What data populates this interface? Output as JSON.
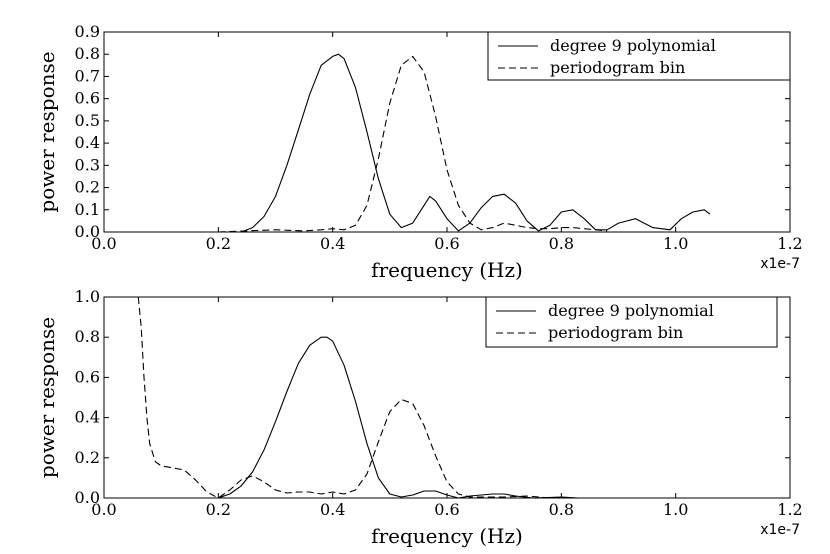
{
  "chart_data": [
    {
      "type": "line",
      "xlabel": "frequency (Hz)",
      "ylabel": "power response",
      "x_offset_text": "x1e-7",
      "xlim": [
        0.0,
        1.2
      ],
      "ylim": [
        0.0,
        0.9
      ],
      "xticks": [
        0.0,
        0.2,
        0.4,
        0.6,
        0.8,
        1.0,
        1.2
      ],
      "xtick_labels": [
        "0.0",
        "0.2",
        "0.4",
        "0.6",
        "0.8",
        "1.0",
        "1.2"
      ],
      "yticks": [
        0.0,
        0.1,
        0.2,
        0.3,
        0.4,
        0.5,
        0.6,
        0.7,
        0.8,
        0.9
      ],
      "ytick_labels": [
        "0.0",
        "0.1",
        "0.2",
        "0.3",
        "0.4",
        "0.5",
        "0.6",
        "0.7",
        "0.8",
        "0.9"
      ],
      "legend_position": "top-right",
      "series": [
        {
          "name": "degree 9 polynomial",
          "style": "solid",
          "x": [
            0.24,
            0.26,
            0.28,
            0.3,
            0.32,
            0.34,
            0.36,
            0.38,
            0.4,
            0.41,
            0.42,
            0.44,
            0.46,
            0.48,
            0.5,
            0.52,
            0.54,
            0.56,
            0.57,
            0.58,
            0.6,
            0.62,
            0.64,
            0.66,
            0.68,
            0.7,
            0.72,
            0.74,
            0.76,
            0.78,
            0.8,
            0.82,
            0.84,
            0.86,
            0.88,
            0.9,
            0.93,
            0.96,
            0.99,
            1.01,
            1.03,
            1.05,
            1.06
          ],
          "y": [
            0.0,
            0.02,
            0.07,
            0.16,
            0.3,
            0.46,
            0.62,
            0.75,
            0.79,
            0.8,
            0.78,
            0.65,
            0.45,
            0.24,
            0.08,
            0.02,
            0.04,
            0.12,
            0.16,
            0.14,
            0.06,
            0.005,
            0.04,
            0.11,
            0.16,
            0.17,
            0.13,
            0.05,
            0.005,
            0.03,
            0.09,
            0.1,
            0.06,
            0.01,
            0.01,
            0.04,
            0.06,
            0.02,
            0.01,
            0.06,
            0.09,
            0.1,
            0.08
          ]
        },
        {
          "name": "periodogram bin",
          "style": "dashed",
          "x": [
            0.2,
            0.25,
            0.3,
            0.35,
            0.38,
            0.4,
            0.42,
            0.44,
            0.46,
            0.48,
            0.5,
            0.52,
            0.54,
            0.56,
            0.58,
            0.6,
            0.62,
            0.64,
            0.66,
            0.68,
            0.7,
            0.72,
            0.74,
            0.76,
            0.78,
            0.8,
            0.82,
            0.84,
            0.86,
            0.88
          ],
          "y": [
            0.0,
            0.005,
            0.01,
            0.005,
            0.01,
            0.015,
            0.01,
            0.03,
            0.12,
            0.33,
            0.58,
            0.75,
            0.79,
            0.72,
            0.52,
            0.28,
            0.12,
            0.04,
            0.01,
            0.02,
            0.04,
            0.03,
            0.02,
            0.015,
            0.015,
            0.02,
            0.02,
            0.015,
            0.01,
            0.005
          ]
        }
      ]
    },
    {
      "type": "line",
      "xlabel": "frequency (Hz)",
      "ylabel": "power response",
      "x_offset_text": "x1e-7",
      "xlim": [
        0.0,
        1.2
      ],
      "ylim": [
        0.0,
        1.0
      ],
      "xticks": [
        0.0,
        0.2,
        0.4,
        0.6,
        0.8,
        1.0,
        1.2
      ],
      "xtick_labels": [
        "0.0",
        "0.2",
        "0.4",
        "0.6",
        "0.8",
        "1.0",
        "1.2"
      ],
      "yticks": [
        0.0,
        0.2,
        0.4,
        0.6,
        0.8,
        1.0
      ],
      "ytick_labels": [
        "0.0",
        "0.2",
        "0.4",
        "0.6",
        "0.8",
        "1.0"
      ],
      "legend_position": "top-right",
      "series": [
        {
          "name": "degree 9 polynomial",
          "style": "solid",
          "x": [
            0.2,
            0.22,
            0.24,
            0.26,
            0.28,
            0.3,
            0.32,
            0.34,
            0.36,
            0.38,
            0.39,
            0.4,
            0.42,
            0.44,
            0.46,
            0.48,
            0.5,
            0.52,
            0.54,
            0.56,
            0.58,
            0.6,
            0.62,
            0.64,
            0.66,
            0.68,
            0.7,
            0.72,
            0.75,
            0.8,
            0.83
          ],
          "y": [
            0.0,
            0.02,
            0.06,
            0.13,
            0.24,
            0.38,
            0.53,
            0.67,
            0.76,
            0.8,
            0.8,
            0.78,
            0.66,
            0.48,
            0.27,
            0.1,
            0.02,
            0.005,
            0.015,
            0.035,
            0.035,
            0.015,
            0.0,
            0.01,
            0.015,
            0.02,
            0.02,
            0.01,
            0.0,
            0.005,
            0.0
          ]
        },
        {
          "name": "periodogram bin",
          "style": "dashed",
          "x": [
            0.06,
            0.065,
            0.07,
            0.075,
            0.08,
            0.09,
            0.1,
            0.12,
            0.14,
            0.16,
            0.18,
            0.2,
            0.22,
            0.24,
            0.26,
            0.28,
            0.3,
            0.32,
            0.34,
            0.36,
            0.38,
            0.4,
            0.42,
            0.44,
            0.46,
            0.48,
            0.5,
            0.52,
            0.54,
            0.56,
            0.58,
            0.6,
            0.62,
            0.64,
            0.66,
            0.7,
            0.74,
            0.78
          ],
          "y": [
            1.0,
            0.85,
            0.6,
            0.4,
            0.27,
            0.18,
            0.16,
            0.15,
            0.14,
            0.09,
            0.03,
            0.0,
            0.04,
            0.09,
            0.11,
            0.08,
            0.04,
            0.025,
            0.03,
            0.03,
            0.02,
            0.03,
            0.02,
            0.04,
            0.12,
            0.28,
            0.43,
            0.49,
            0.47,
            0.36,
            0.21,
            0.08,
            0.02,
            0.005,
            0.005,
            0.005,
            0.01,
            0.0
          ]
        }
      ]
    }
  ]
}
